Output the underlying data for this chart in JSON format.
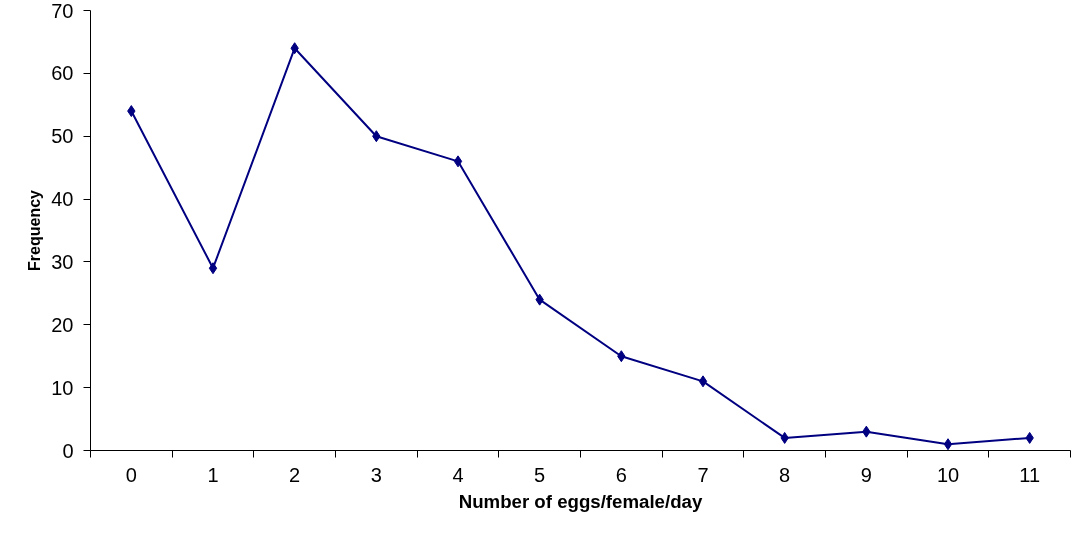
{
  "chart_data": {
    "type": "line",
    "xlabel": "Number of eggs/female/day",
    "ylabel": "Frequency",
    "categories": [
      "0",
      "1",
      "2",
      "3",
      "4",
      "5",
      "6",
      "7",
      "8",
      "9",
      "10",
      "11"
    ],
    "series": [
      {
        "color": "#000080",
        "values": [
          54,
          29,
          64,
          50,
          46,
          24,
          15,
          11,
          2,
          3,
          1,
          2
        ]
      }
    ],
    "ylim": [
      0,
      70
    ],
    "yticks": [
      0,
      10,
      20,
      30,
      40,
      50,
      60,
      70
    ],
    "grid": false,
    "marker": "diamond",
    "line_style": "solid"
  }
}
